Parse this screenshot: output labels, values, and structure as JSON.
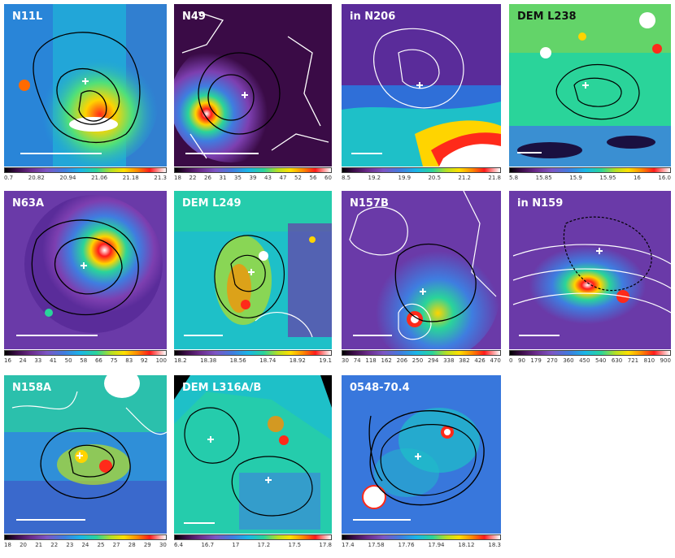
{
  "panels": [
    {
      "label": "N11L",
      "ticks": [
        "0.7",
        "20.82",
        "20.94",
        "21.06",
        "21.18",
        "21.3"
      ]
    },
    {
      "label": "N49",
      "ticks": [
        "18",
        "22",
        "26",
        "31",
        "35",
        "39",
        "43",
        "47",
        "52",
        "56",
        "60"
      ]
    },
    {
      "label": "in N206",
      "ticks": [
        "8.5",
        "19.2",
        "19.9",
        "20.5",
        "21.2",
        "21.8"
      ]
    },
    {
      "label": "DEM L238",
      "ticks": [
        "5.8",
        "15.85",
        "15.9",
        "15.95",
        "16",
        "16.0"
      ]
    },
    {
      "label": "N63A",
      "ticks": [
        "16",
        "24",
        "33",
        "41",
        "50",
        "58",
        "66",
        "75",
        "83",
        "92",
        "100"
      ]
    },
    {
      "label": "DEM L249",
      "ticks": [
        "18.2",
        "18.38",
        "18.56",
        "18.74",
        "18.92",
        "19.1"
      ]
    },
    {
      "label": "N157B",
      "ticks": [
        "30",
        "74",
        "118",
        "162",
        "206",
        "250",
        "294",
        "338",
        "382",
        "426",
        "470"
      ]
    },
    {
      "label": "in N159",
      "ticks": [
        "0",
        "90",
        "179",
        "270",
        "360",
        "450",
        "540",
        "630",
        "721",
        "810",
        "900"
      ]
    },
    {
      "label": "N158A",
      "ticks": [
        "18",
        "20",
        "21",
        "22",
        "23",
        "24",
        "25",
        "27",
        "28",
        "29",
        "30"
      ]
    },
    {
      "label": "DEM L316A/B",
      "ticks": [
        "6.4",
        "16.7",
        "17",
        "17.2",
        "17.5",
        "17.8"
      ]
    },
    {
      "label": "0548-70.4",
      "ticks": [
        "17.4",
        "17.58",
        "17.76",
        "17.94",
        "18.12",
        "18.3"
      ]
    }
  ]
}
